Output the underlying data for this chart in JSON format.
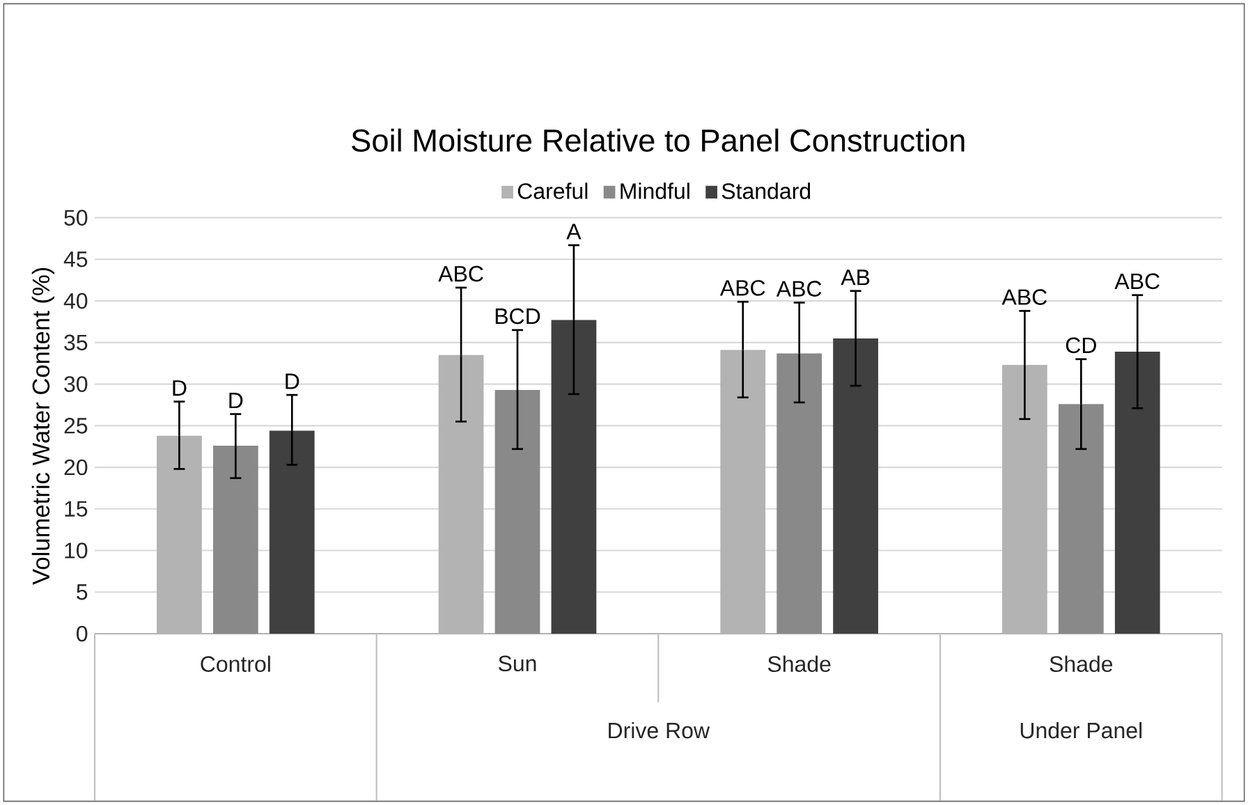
{
  "chart_data": {
    "type": "bar",
    "title": "Soil Moisture Relative to Panel Construction",
    "ylabel": "Volumetric Water Content (%)",
    "categories": [
      "Control",
      "Sun",
      "Shade",
      "Shade"
    ],
    "series": [
      {
        "name": "Careful",
        "color": "#b3b3b3",
        "values": [
          23.8,
          33.5,
          34.1,
          32.3
        ],
        "errors": [
          [
            19.8,
            27.9
          ],
          [
            25.5,
            41.6
          ],
          [
            28.4,
            39.9
          ],
          [
            25.8,
            38.8
          ]
        ]
      },
      {
        "name": "Mindful",
        "color": "#898989",
        "values": [
          22.6,
          29.3,
          33.7,
          27.6
        ],
        "errors": [
          [
            18.7,
            26.4
          ],
          [
            22.2,
            36.5
          ],
          [
            27.8,
            39.8
          ],
          [
            22.2,
            33.0
          ]
        ]
      },
      {
        "name": "Standard",
        "color": "#404040",
        "values": [
          24.4,
          37.7,
          35.5,
          33.9
        ],
        "errors": [
          [
            20.3,
            28.7
          ],
          [
            28.8,
            46.7
          ],
          [
            29.8,
            41.2
          ],
          [
            27.1,
            40.7
          ]
        ]
      }
    ],
    "ylim": [
      0,
      50
    ],
    "yticks": [
      0,
      5,
      10,
      15,
      20,
      25,
      30,
      35,
      40,
      45,
      50
    ],
    "grid": "y",
    "legend": "top",
    "annotations": [
      "D",
      "D",
      "D",
      "ABC",
      "BCD",
      "A",
      "ABC",
      "ABC",
      "AB",
      "ABC",
      "CD",
      "ABC",
      "Drive Row",
      "Under Panel"
    ]
  }
}
